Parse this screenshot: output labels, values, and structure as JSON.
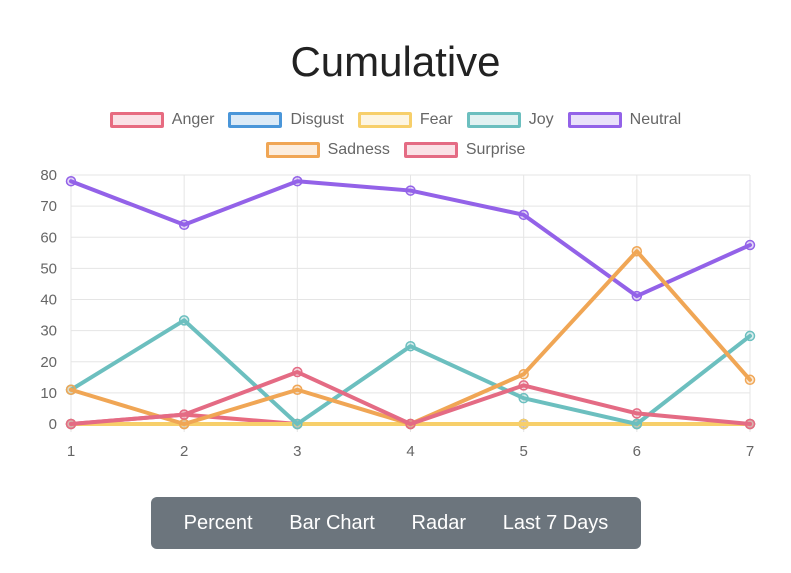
{
  "chart_data": {
    "type": "line",
    "title": "Cumulative",
    "x": [
      1,
      2,
      3,
      4,
      5,
      6,
      7
    ],
    "ylim": [
      0,
      80
    ],
    "yticks": [
      0,
      10,
      20,
      30,
      40,
      50,
      60,
      70,
      80
    ],
    "grid": true,
    "legend": "top",
    "series": [
      {
        "name": "Anger",
        "color": "#e76b80",
        "values": [
          0,
          3,
          0,
          0,
          0,
          0,
          0
        ]
      },
      {
        "name": "Disgust",
        "color": "#4a96d9",
        "values": [
          0,
          0,
          0,
          0,
          0,
          0,
          0
        ]
      },
      {
        "name": "Fear",
        "color": "#f7cf6a",
        "values": [
          0,
          0,
          0,
          0,
          0,
          0,
          0
        ]
      },
      {
        "name": "Joy",
        "color": "#6cbfbf",
        "values": [
          11,
          33.3,
          0,
          25,
          8.3,
          0,
          28.3
        ]
      },
      {
        "name": "Neutral",
        "color": "#9362e8",
        "values": [
          78,
          64,
          78,
          75,
          67.2,
          41.1,
          57.5
        ]
      },
      {
        "name": "Sadness",
        "color": "#f0a655",
        "values": [
          11,
          0,
          11,
          0,
          16,
          55.5,
          14.2
        ]
      },
      {
        "name": "Surprise",
        "color": "#e46b84",
        "values": [
          0,
          3,
          16.7,
          0,
          12.4,
          3.4,
          0
        ]
      }
    ]
  },
  "buttons": {
    "percent": "Percent",
    "bar_chart": "Bar Chart",
    "radar": "Radar",
    "last7": "Last 7 Days"
  }
}
